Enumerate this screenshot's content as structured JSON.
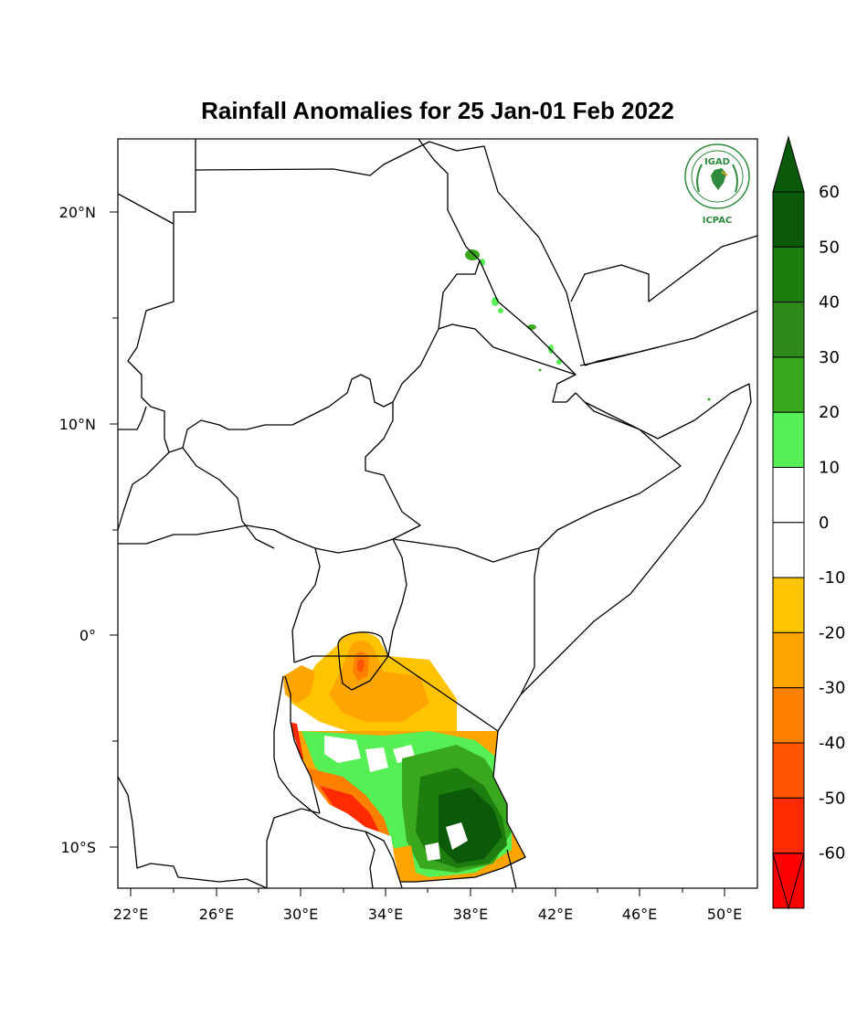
{
  "title": "Rainfall Anomalies for 25 Jan-01 Feb 2022",
  "logo": {
    "top_text": "IGAD",
    "bottom_text": "ICPAC",
    "color": "#2e8b3d"
  },
  "lat_labels": [
    "20°N",
    "10°N",
    "0°",
    "10°S"
  ],
  "lon_labels": [
    "22°E",
    "26°E",
    "30°E",
    "34°E",
    "38°E",
    "42°E",
    "46°E",
    "50°E"
  ],
  "colorbar": {
    "labels": [
      "60",
      "50",
      "40",
      "30",
      "20",
      "10",
      "0",
      "-10",
      "-20",
      "-30",
      "-40",
      "-50",
      "-60"
    ],
    "colors": [
      "#0a5a0a",
      "#1e7d0f",
      "#2e8b1a",
      "#3aa81f",
      "#56ef56",
      "#ffffff",
      "#ffffff",
      "#ffc400",
      "#ffa500",
      "#ff7f00",
      "#ff5500",
      "#ff2a00",
      "#ff0000"
    ],
    "top_arrow_color": "#0a5a0a",
    "bottom_arrow_color": "#ff0000"
  }
}
